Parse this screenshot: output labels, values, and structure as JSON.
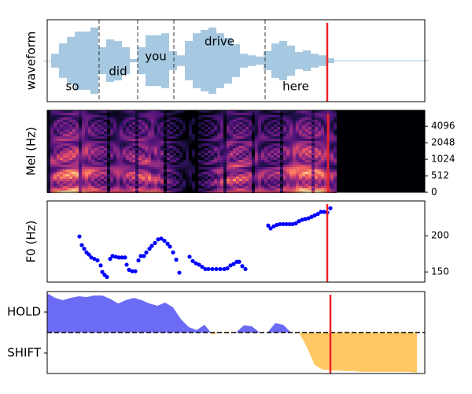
{
  "chart_data": [
    {
      "type": "waveform",
      "ylabel": "waveform",
      "xlim": [
        0,
        480
      ],
      "ylim": [
        -1,
        1
      ],
      "color": "#a6c8e0",
      "x": [
        0,
        10,
        20,
        30,
        40,
        50,
        60,
        70,
        80,
        90,
        100,
        110,
        120,
        130,
        140,
        150,
        160,
        170,
        180,
        190,
        200,
        210,
        220,
        230,
        240,
        250,
        260,
        270,
        280,
        290,
        300,
        310,
        320,
        330,
        340,
        350,
        360,
        370,
        380,
        390,
        400,
        410,
        420,
        430,
        440,
        450,
        460,
        470,
        480
      ],
      "values": [
        0,
        0.17,
        0.42,
        0.58,
        0.71,
        0.71,
        0.81,
        0.33,
        0.52,
        0.48,
        0.33,
        0.04,
        0.33,
        0.62,
        0.62,
        0.67,
        0.23,
        0.13,
        0.48,
        0.67,
        0.75,
        0.81,
        0.67,
        0.56,
        0.4,
        0.17,
        0.13,
        0.1,
        0.23,
        0.42,
        0.48,
        0.37,
        0.21,
        0.25,
        0.17,
        0.13,
        0.06,
        0.01,
        0.01,
        0.01,
        0.01,
        0.01,
        0.01,
        0.01,
        0.01,
        0.01,
        0.01,
        0.01,
        0.01
      ],
      "boundaries": [
        66,
        115,
        161,
        277
      ],
      "words": [
        {
          "text": "so",
          "x": 32,
          "y": -0.63
        },
        {
          "text": "did",
          "x": 90,
          "y": -0.27
        },
        {
          "text": "you",
          "x": 138,
          "y": 0.1
        },
        {
          "text": "drive",
          "x": 219,
          "y": 0.46
        },
        {
          "text": "here",
          "x": 316,
          "y": -0.63
        }
      ],
      "cursor": 356,
      "cursor_color": "#ee2222"
    },
    {
      "type": "spectrogram",
      "ylabel": "Mel (Hz)",
      "xlim": [
        0,
        480
      ],
      "ylim": [
        0,
        8000
      ],
      "yscale": "symlog",
      "linthresh": 512,
      "yticks": [
        0,
        512,
        1024,
        2048,
        4096
      ],
      "cursor": 357,
      "cursor_color": "#ee2222"
    },
    {
      "type": "scatter",
      "ylabel": "F0 (Hz)",
      "xlim": [
        0,
        480
      ],
      "ylim": [
        136,
        248
      ],
      "yticks": [
        150,
        200
      ],
      "color": "#0000ff",
      "x": [
        41,
        44,
        47,
        50,
        53,
        56,
        60,
        64,
        68,
        70,
        73,
        76,
        80,
        83,
        87,
        91,
        95,
        99,
        101,
        104,
        108,
        112,
        116,
        119,
        123,
        126,
        130,
        133,
        137,
        141,
        145,
        149,
        153,
        156,
        160,
        164,
        168,
        181,
        185,
        189,
        193,
        197,
        201,
        205,
        210,
        215,
        220,
        225,
        229,
        233,
        237,
        241,
        244,
        248,
        252,
        281,
        284,
        288,
        292,
        296,
        300,
        304,
        308,
        312,
        316,
        320,
        324,
        328,
        332,
        336,
        340,
        344,
        348,
        352,
        356,
        360
      ],
      "values": [
        199,
        187,
        182,
        177,
        174,
        170,
        168,
        166,
        159,
        150,
        146,
        143,
        168,
        172,
        171,
        170,
        170,
        170,
        160,
        153,
        151,
        151,
        166,
        172,
        172,
        177,
        182,
        186,
        190,
        195,
        196,
        193,
        189,
        185,
        177,
        167,
        149,
        171,
        165,
        162,
        160,
        157,
        154,
        154,
        154,
        154,
        154,
        154,
        155,
        159,
        161,
        164,
        164,
        158,
        154,
        214,
        210,
        213,
        215,
        216,
        216,
        216,
        216,
        216,
        217,
        220,
        222,
        223,
        224,
        226,
        228,
        230,
        233,
        233,
        232,
        238
      ],
      "cursor": 356,
      "cursor_color": "#ee2222"
    },
    {
      "type": "area",
      "xlim": [
        0,
        480
      ],
      "ylim": [
        -2,
        2
      ],
      "yticks": [
        {
          "value": 1,
          "label": "HOLD"
        },
        {
          "value": -1,
          "label": "SHIFT"
        }
      ],
      "color": "#6b6bf5",
      "negative_color": "#ffc864",
      "x": [
        0,
        10,
        20,
        30,
        40,
        50,
        60,
        70,
        80,
        90,
        100,
        110,
        120,
        130,
        140,
        150,
        160,
        170,
        180,
        190,
        200,
        210,
        220,
        230,
        240,
        250,
        260,
        270,
        280,
        290,
        300,
        310,
        320,
        330,
        340,
        350,
        360,
        370,
        380,
        390,
        400,
        410,
        420,
        430,
        440,
        450,
        460,
        470
      ],
      "values": [
        1.92,
        1.69,
        1.58,
        1.69,
        1.77,
        1.73,
        1.81,
        1.81,
        1.65,
        1.42,
        1.58,
        1.69,
        1.58,
        1.42,
        1.31,
        1.46,
        1.23,
        0.65,
        0.27,
        0.12,
        0.38,
        -0.1,
        0,
        -0.05,
        0,
        0.35,
        0.31,
        0,
        0,
        0.46,
        0.38,
        0,
        0,
        -0.69,
        -1.58,
        -1.81,
        -1.85,
        -1.85,
        -1.88,
        -1.88,
        -1.92,
        -1.92,
        -1.92,
        -1.92,
        -1.92,
        -1.92,
        -1.92,
        -1.96
      ],
      "cursor": 360,
      "cursor_color": "#ee2222"
    }
  ]
}
